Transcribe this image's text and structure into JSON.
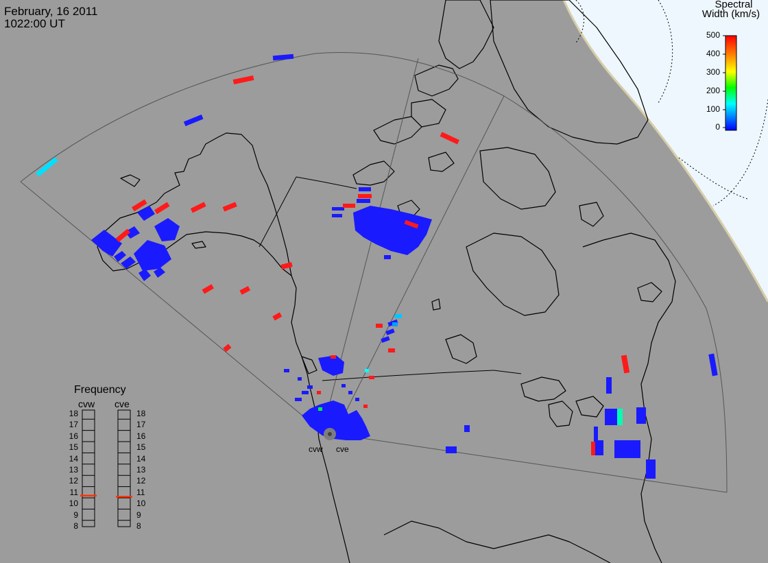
{
  "header": {
    "date": "February, 16 2011",
    "time": "1022:00 UT"
  },
  "colorbar": {
    "title_line1": "Spectral",
    "title_line2": "Width (km/s)",
    "ticks": [
      "500",
      "400",
      "300",
      "200",
      "100",
      "0"
    ],
    "gradient": [
      "#ff0000",
      "#ff8000",
      "#ffff00",
      "#00ff00",
      "#00ffff",
      "#0080ff",
      "#0000ff"
    ]
  },
  "radars": {
    "west": "cvw",
    "east": "cve"
  },
  "frequency": {
    "title": "Frequency",
    "col_west": "cvw",
    "col_east": "cve",
    "scale": [
      "18",
      "17",
      "16",
      "15",
      "14",
      "13",
      "12",
      "11",
      "10",
      "9",
      "8"
    ],
    "cvw_value_mhz": 10.7,
    "cve_value_mhz": 10.6,
    "marker_color": "#ff3300"
  },
  "colors": {
    "land_bg": "#9c9c9c",
    "night_region": "#eef7fd",
    "coast": "#000000",
    "low_width": "#1a1aff",
    "high_width": "#ff1a1a"
  }
}
